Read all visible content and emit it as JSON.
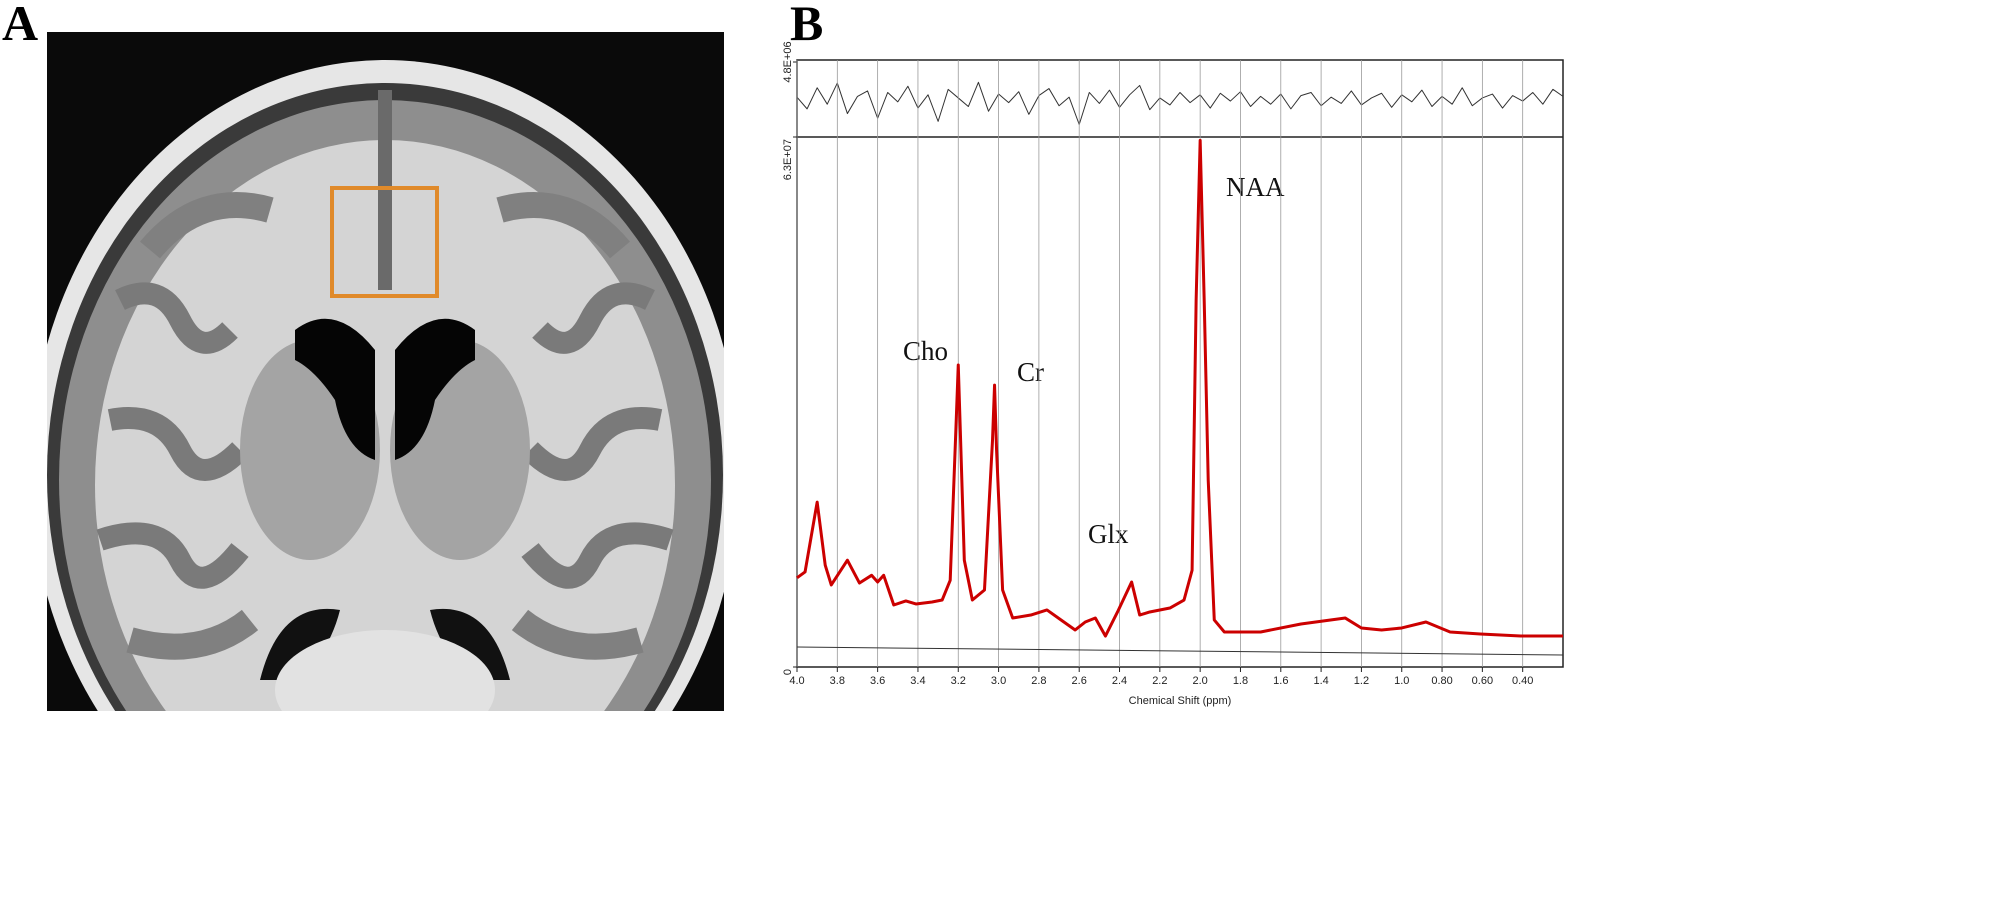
{
  "panels": [
    {
      "label": "A"
    },
    {
      "label": "B"
    }
  ],
  "chart_data": [
    {
      "type": "line",
      "xlim": [
        4.0,
        0.2
      ],
      "ylim": [
        -4800000,
        4800000
      ],
      "yticks": [
        {
          "value": 4800000,
          "label": "4.8E+06"
        }
      ],
      "series": [
        {
          "color": "#333333",
          "x": [
            4.0,
            3.95,
            3.9,
            3.85,
            3.8,
            3.75,
            3.7,
            3.65,
            3.6,
            3.55,
            3.5,
            3.45,
            3.4,
            3.35,
            3.3,
            3.25,
            3.2,
            3.15,
            3.1,
            3.05,
            3.0,
            2.95,
            2.9,
            2.85,
            2.8,
            2.75,
            2.7,
            2.65,
            2.6,
            2.55,
            2.5,
            2.45,
            2.4,
            2.35,
            2.3,
            2.25,
            2.2,
            2.15,
            2.1,
            2.05,
            2.0,
            1.95,
            1.9,
            1.85,
            1.8,
            1.75,
            1.7,
            1.65,
            1.6,
            1.55,
            1.5,
            1.45,
            1.4,
            1.35,
            1.3,
            1.25,
            1.2,
            1.15,
            1.1,
            1.05,
            1.0,
            0.95,
            0.9,
            0.85,
            0.8,
            0.75,
            0.7,
            0.65,
            0.6,
            0.55,
            0.5,
            0.45,
            0.4,
            0.35,
            0.3,
            0.25,
            0.2
          ],
          "values": [
            300000.0,
            -1200000.0,
            1500000.0,
            -600000.0,
            2100000.0,
            -1800000.0,
            400000.0,
            1100000.0,
            -2400000.0,
            900000.0,
            -300000.0,
            1700000.0,
            -1100000.0,
            600000.0,
            -2800000.0,
            1300000.0,
            200000.0,
            -900000.0,
            2200000.0,
            -1500000.0,
            700000.0,
            -400000.0,
            1000000.0,
            -1900000.0,
            500000.0,
            1400000.0,
            -800000.0,
            300000.0,
            -3200000.0,
            900000.0,
            -500000.0,
            1200000.0,
            -1000000.0,
            600000.0,
            1800000.0,
            -1300000.0,
            200000.0,
            -700000.0,
            900000.0,
            -400000.0,
            600000.0,
            -1100000.0,
            800000.0,
            -200000.0,
            1000000.0,
            -900000.0,
            400000.0,
            -600000.0,
            700000.0,
            -1200000.0,
            500000.0,
            900000.0,
            -800000.0,
            300000.0,
            -500000.0,
            1100000.0,
            -700000.0,
            200000.0,
            800000.0,
            -1000000.0,
            600000.0,
            -300000.0,
            1200000.0,
            -900000.0,
            400000.0,
            -600000.0,
            1500000.0,
            -800000.0,
            200000.0,
            700000.0,
            -1100000.0,
            500000.0,
            -200000.0,
            900000.0,
            -600000.0,
            1300000.0,
            400000.0
          ]
        }
      ]
    },
    {
      "type": "line",
      "xlabel": "Chemical Shift (ppm)",
      "xlim": [
        4.0,
        0.2
      ],
      "xticks": [
        {
          "value": 4,
          "label": "4.0"
        },
        3.8,
        3.6,
        3.4,
        3.2,
        {
          "value": 3,
          "label": "3.0"
        },
        2.8,
        2.6,
        2.4,
        2.2,
        {
          "value": 2,
          "label": "2.0"
        },
        1.8,
        1.6,
        1.4,
        1.2,
        {
          "value": 1,
          "label": "1.0"
        },
        {
          "value": 0.8,
          "label": "0.80"
        },
        {
          "value": 0.6,
          "label": "0.60"
        },
        {
          "value": 0.4,
          "label": "0.40"
        }
      ],
      "ylim": [
        0,
        63000000
      ],
      "yticks": [
        0,
        {
          "value": 63000000,
          "label": "6.3E+07"
        }
      ],
      "grid": true,
      "annotations": [
        "Cho",
        "Cr",
        "Glx",
        "NAA"
      ],
      "series": [
        {
          "color": "#cc0000",
          "x": [
            4.0,
            3.96,
            3.9,
            3.86,
            3.83,
            3.75,
            3.69,
            3.63,
            3.6,
            3.57,
            3.52,
            3.46,
            3.41,
            3.33,
            3.28,
            3.24,
            3.21,
            3.2,
            3.19,
            3.17,
            3.13,
            3.07,
            3.03,
            3.02,
            3.01,
            2.98,
            2.93,
            2.84,
            2.76,
            2.69,
            2.62,
            2.57,
            2.52,
            2.47,
            2.41,
            2.34,
            2.3,
            2.25,
            2.15,
            2.08,
            2.04,
            2.02,
            2.0,
            1.98,
            1.96,
            1.93,
            1.88,
            1.7,
            1.5,
            1.28,
            1.2,
            1.1,
            1.0,
            0.88,
            0.76,
            0.61,
            0.41,
            0.2
          ],
          "values": [
            10600000.0,
            11300000.0,
            19600000.0,
            12100000.0,
            9750000.0,
            12700000.0,
            9980000.0,
            10900000.0,
            10100000.0,
            10900000.0,
            7370000.0,
            7850000.0,
            7490000.0,
            7730000.0,
            7960000.0,
            10300000.0,
            29400000.0,
            35900000.0,
            28200000.0,
            12700000.0,
            7960000.0,
            9150000.0,
            27000000.0,
            33500000.0,
            25800000.0,
            9150000.0,
            5820000.0,
            6180000.0,
            6780000.0,
            5590000.0,
            4400000.0,
            5350000.0,
            5820000.0,
            3680000.0,
            6540000.0,
            10100000.0,
            6180000.0,
            6540000.0,
            7010000.0,
            7960000.0,
            11500000.0,
            43600000.0,
            62600000.0,
            43600000.0,
            22200000.0,
            5590000.0,
            4160000.0,
            4160000.0,
            5110000.0,
            5820000.0,
            4640000.0,
            4400000.0,
            4640000.0,
            5350000.0,
            4160000.0,
            3920000.0,
            3680000.0,
            3680000.0
          ]
        },
        {
          "color": "#333333",
          "x": [
            4.0,
            0.2
          ],
          "values": [
            2380000.0,
            1430000.0
          ]
        }
      ]
    }
  ]
}
